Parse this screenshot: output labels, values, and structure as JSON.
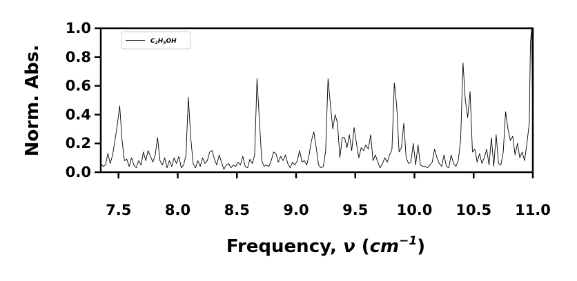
{
  "chart_data": {
    "type": "line",
    "title": "",
    "xlabel": "Frequency, ν (cm⁻¹)",
    "xlabel_parts": {
      "prefix": "Frequency, ",
      "symbol": "ν",
      "open": " (",
      "unit": "cm",
      "exponent": "−1",
      "close": ")"
    },
    "ylabel": "Norm. Abs.",
    "xlim": [
      7.35,
      11.0
    ],
    "ylim": [
      0.0,
      1.0
    ],
    "xticks": [
      7.5,
      8.0,
      8.5,
      9.0,
      9.5,
      10.0,
      10.5,
      11.0
    ],
    "xtick_labels": [
      "7.5",
      "8.0",
      "8.5",
      "9.0",
      "9.5",
      "10.0",
      "10.5",
      "11.0"
    ],
    "yticks": [
      0.0,
      0.2,
      0.4,
      0.6,
      0.8,
      1.0
    ],
    "ytick_labels": [
      "0.0",
      "0.2",
      "0.4",
      "0.6",
      "0.8",
      "1.0"
    ],
    "grid": false,
    "legend_position": "top-left",
    "series": [
      {
        "name": "C2H5OH",
        "legend_parts": {
          "a": "C",
          "a_sub": "2",
          "b": "H",
          "b_sub": "5",
          "c": "OH"
        },
        "color": "#000000",
        "points": [
          [
            7.35,
            0.06
          ],
          [
            7.37,
            0.04
          ],
          [
            7.39,
            0.05
          ],
          [
            7.41,
            0.13
          ],
          [
            7.43,
            0.06
          ],
          [
            7.45,
            0.12
          ],
          [
            7.47,
            0.22
          ],
          [
            7.49,
            0.33
          ],
          [
            7.51,
            0.46
          ],
          [
            7.53,
            0.22
          ],
          [
            7.55,
            0.08
          ],
          [
            7.57,
            0.09
          ],
          [
            7.59,
            0.04
          ],
          [
            7.61,
            0.1
          ],
          [
            7.63,
            0.05
          ],
          [
            7.65,
            0.03
          ],
          [
            7.67,
            0.08
          ],
          [
            7.69,
            0.05
          ],
          [
            7.71,
            0.14
          ],
          [
            7.73,
            0.08
          ],
          [
            7.75,
            0.15
          ],
          [
            7.77,
            0.11
          ],
          [
            7.79,
            0.07
          ],
          [
            7.81,
            0.12
          ],
          [
            7.83,
            0.24
          ],
          [
            7.85,
            0.08
          ],
          [
            7.87,
            0.05
          ],
          [
            7.89,
            0.1
          ],
          [
            7.91,
            0.03
          ],
          [
            7.93,
            0.08
          ],
          [
            7.95,
            0.04
          ],
          [
            7.97,
            0.1
          ],
          [
            7.99,
            0.06
          ],
          [
            8.01,
            0.11
          ],
          [
            8.03,
            0.03
          ],
          [
            8.05,
            0.05
          ],
          [
            8.07,
            0.12
          ],
          [
            8.09,
            0.52
          ],
          [
            8.11,
            0.24
          ],
          [
            8.13,
            0.06
          ],
          [
            8.15,
            0.03
          ],
          [
            8.17,
            0.08
          ],
          [
            8.19,
            0.04
          ],
          [
            8.21,
            0.1
          ],
          [
            8.23,
            0.06
          ],
          [
            8.25,
            0.08
          ],
          [
            8.27,
            0.14
          ],
          [
            8.29,
            0.15
          ],
          [
            8.31,
            0.09
          ],
          [
            8.33,
            0.05
          ],
          [
            8.35,
            0.12
          ],
          [
            8.37,
            0.07
          ],
          [
            8.39,
            0.02
          ],
          [
            8.41,
            0.05
          ],
          [
            8.43,
            0.06
          ],
          [
            8.45,
            0.03
          ],
          [
            8.47,
            0.05
          ],
          [
            8.49,
            0.04
          ],
          [
            8.51,
            0.07
          ],
          [
            8.53,
            0.05
          ],
          [
            8.55,
            0.11
          ],
          [
            8.57,
            0.04
          ],
          [
            8.59,
            0.03
          ],
          [
            8.61,
            0.09
          ],
          [
            8.63,
            0.06
          ],
          [
            8.65,
            0.12
          ],
          [
            8.67,
            0.65
          ],
          [
            8.69,
            0.36
          ],
          [
            8.71,
            0.08
          ],
          [
            8.73,
            0.04
          ],
          [
            8.75,
            0.05
          ],
          [
            8.77,
            0.04
          ],
          [
            8.79,
            0.08
          ],
          [
            8.81,
            0.14
          ],
          [
            8.83,
            0.13
          ],
          [
            8.85,
            0.07
          ],
          [
            8.87,
            0.11
          ],
          [
            8.89,
            0.08
          ],
          [
            8.91,
            0.12
          ],
          [
            8.93,
            0.06
          ],
          [
            8.95,
            0.03
          ],
          [
            8.97,
            0.07
          ],
          [
            8.99,
            0.05
          ],
          [
            9.01,
            0.08
          ],
          [
            9.03,
            0.15
          ],
          [
            9.05,
            0.07
          ],
          [
            9.07,
            0.08
          ],
          [
            9.09,
            0.05
          ],
          [
            9.11,
            0.12
          ],
          [
            9.13,
            0.22
          ],
          [
            9.15,
            0.28
          ],
          [
            9.17,
            0.17
          ],
          [
            9.19,
            0.05
          ],
          [
            9.21,
            0.03
          ],
          [
            9.23,
            0.04
          ],
          [
            9.25,
            0.15
          ],
          [
            9.27,
            0.65
          ],
          [
            9.29,
            0.47
          ],
          [
            9.31,
            0.3
          ],
          [
            9.33,
            0.4
          ],
          [
            9.35,
            0.34
          ],
          [
            9.37,
            0.1
          ],
          [
            9.39,
            0.24
          ],
          [
            9.41,
            0.24
          ],
          [
            9.43,
            0.17
          ],
          [
            9.45,
            0.26
          ],
          [
            9.47,
            0.15
          ],
          [
            9.49,
            0.31
          ],
          [
            9.51,
            0.2
          ],
          [
            9.53,
            0.1
          ],
          [
            9.55,
            0.17
          ],
          [
            9.57,
            0.15
          ],
          [
            9.59,
            0.19
          ],
          [
            9.61,
            0.16
          ],
          [
            9.63,
            0.26
          ],
          [
            9.65,
            0.08
          ],
          [
            9.67,
            0.12
          ],
          [
            9.69,
            0.07
          ],
          [
            9.71,
            0.03
          ],
          [
            9.73,
            0.06
          ],
          [
            9.75,
            0.1
          ],
          [
            9.77,
            0.07
          ],
          [
            9.79,
            0.12
          ],
          [
            9.81,
            0.16
          ],
          [
            9.83,
            0.62
          ],
          [
            9.85,
            0.46
          ],
          [
            9.87,
            0.14
          ],
          [
            9.89,
            0.17
          ],
          [
            9.91,
            0.34
          ],
          [
            9.93,
            0.1
          ],
          [
            9.95,
            0.06
          ],
          [
            9.97,
            0.07
          ],
          [
            9.99,
            0.2
          ],
          [
            10.01,
            0.05
          ],
          [
            10.03,
            0.19
          ],
          [
            10.05,
            0.05
          ],
          [
            10.07,
            0.04
          ],
          [
            10.09,
            0.04
          ],
          [
            10.11,
            0.03
          ],
          [
            10.13,
            0.05
          ],
          [
            10.15,
            0.07
          ],
          [
            10.17,
            0.16
          ],
          [
            10.19,
            0.1
          ],
          [
            10.21,
            0.06
          ],
          [
            10.23,
            0.04
          ],
          [
            10.25,
            0.12
          ],
          [
            10.27,
            0.04
          ],
          [
            10.29,
            0.03
          ],
          [
            10.31,
            0.12
          ],
          [
            10.33,
            0.06
          ],
          [
            10.35,
            0.04
          ],
          [
            10.37,
            0.08
          ],
          [
            10.39,
            0.22
          ],
          [
            10.41,
            0.76
          ],
          [
            10.43,
            0.5
          ],
          [
            10.45,
            0.38
          ],
          [
            10.47,
            0.56
          ],
          [
            10.49,
            0.14
          ],
          [
            10.51,
            0.16
          ],
          [
            10.53,
            0.07
          ],
          [
            10.55,
            0.13
          ],
          [
            10.57,
            0.06
          ],
          [
            10.59,
            0.1
          ],
          [
            10.61,
            0.16
          ],
          [
            10.63,
            0.05
          ],
          [
            10.65,
            0.24
          ],
          [
            10.67,
            0.04
          ],
          [
            10.69,
            0.26
          ],
          [
            10.71,
            0.06
          ],
          [
            10.73,
            0.05
          ],
          [
            10.75,
            0.14
          ],
          [
            10.77,
            0.42
          ],
          [
            10.79,
            0.3
          ],
          [
            10.81,
            0.22
          ],
          [
            10.83,
            0.25
          ],
          [
            10.85,
            0.12
          ],
          [
            10.87,
            0.2
          ],
          [
            10.89,
            0.1
          ],
          [
            10.91,
            0.14
          ],
          [
            10.93,
            0.08
          ],
          [
            10.95,
            0.2
          ],
          [
            10.97,
            0.34
          ],
          [
            10.98,
            0.9
          ],
          [
            10.99,
            1.0
          ],
          [
            11.0,
            0.3
          ]
        ]
      }
    ]
  }
}
